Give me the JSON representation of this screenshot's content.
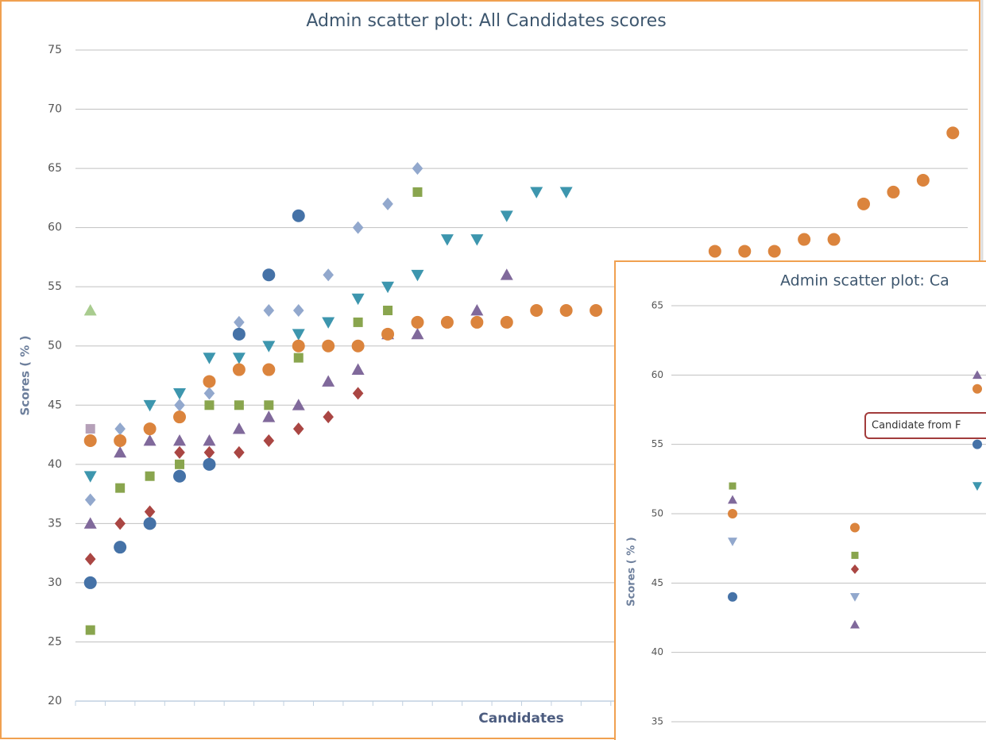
{
  "chart_data": [
    {
      "type": "scatter",
      "title": "Admin scatter plot: All Candidates scores",
      "x_label": "Candidates",
      "y_label": "Scores ( % )",
      "categories": [
        null,
        null,
        null,
        null,
        null,
        null,
        null,
        null,
        null,
        null,
        null,
        null,
        null,
        null,
        null,
        null,
        null,
        null,
        null,
        null,
        null,
        null,
        null,
        null,
        null,
        null,
        null,
        null,
        null,
        null
      ],
      "ylim": [
        20,
        75
      ],
      "yticks": [
        20,
        25,
        30,
        35,
        40,
        45,
        50,
        55,
        60,
        65,
        70,
        75
      ],
      "grid": true,
      "series": [
        {
          "color": "#b5a0b8",
          "marker": "square",
          "values": [
            43,
            null,
            null,
            null,
            null,
            null,
            null,
            null,
            null,
            null,
            null,
            null,
            null,
            null,
            null,
            null,
            null,
            null,
            null,
            null,
            null,
            null,
            null,
            null,
            null,
            null,
            null,
            null,
            null,
            null
          ]
        },
        {
          "color": "#a9cc8f",
          "marker": "triangle",
          "values": [
            53,
            null,
            null,
            null,
            null,
            null,
            null,
            null,
            null,
            null,
            null,
            null,
            null,
            null,
            null,
            null,
            null,
            null,
            null,
            null,
            null,
            null,
            null,
            null,
            null,
            null,
            null,
            null,
            null,
            null
          ]
        },
        {
          "color": "#92a8cd",
          "marker": "diamond",
          "values": [
            37,
            43,
            43,
            45,
            46,
            52,
            53,
            53,
            56,
            60,
            62,
            65,
            null,
            null,
            null,
            null,
            null,
            null,
            null,
            null,
            null,
            null,
            null,
            null,
            null,
            null,
            null,
            null,
            null,
            null
          ]
        },
        {
          "color": "#89a54e",
          "marker": "square",
          "values": [
            26,
            38,
            39,
            40,
            45,
            45,
            45,
            49,
            null,
            52,
            53,
            63,
            null,
            null,
            null,
            null,
            null,
            null,
            null,
            null,
            null,
            null,
            null,
            null,
            null,
            null,
            null,
            null,
            null,
            null
          ]
        },
        {
          "color": "#aa4643",
          "marker": "diamond",
          "values": [
            32,
            35,
            36,
            41,
            41,
            41,
            42,
            43,
            44,
            46,
            null,
            null,
            null,
            null,
            null,
            null,
            null,
            null,
            null,
            null,
            null,
            null,
            null,
            null,
            null,
            null,
            null,
            null,
            null,
            null
          ]
        },
        {
          "color": "#80699b",
          "marker": "triangle",
          "values": [
            35,
            41,
            42,
            42,
            42,
            43,
            44,
            45,
            47,
            48,
            51,
            51,
            null,
            53,
            56,
            null,
            null,
            null,
            null,
            null,
            null,
            null,
            null,
            null,
            null,
            null,
            null,
            null,
            null,
            null
          ]
        },
        {
          "color": "#3d96ae",
          "marker": "triangle-down",
          "values": [
            39,
            null,
            45,
            46,
            49,
            49,
            50,
            51,
            52,
            54,
            55,
            56,
            59,
            59,
            61,
            63,
            63,
            null,
            null,
            null,
            null,
            null,
            null,
            null,
            null,
            null,
            null,
            null,
            null,
            null
          ]
        },
        {
          "color": "#4572a7",
          "marker": "circle",
          "values": [
            30,
            33,
            35,
            39,
            40,
            51,
            56,
            61,
            null,
            null,
            null,
            null,
            null,
            null,
            null,
            null,
            null,
            null,
            null,
            null,
            null,
            null,
            null,
            null,
            null,
            null,
            null,
            null,
            null,
            null
          ]
        },
        {
          "color": "#db843d",
          "marker": "circle",
          "values": [
            42,
            42,
            43,
            44,
            47,
            48,
            48,
            50,
            50,
            50,
            51,
            52,
            52,
            52,
            52,
            53,
            53,
            53,
            null,
            null,
            null,
            58,
            58,
            58,
            59,
            59,
            62,
            63,
            64,
            68
          ]
        }
      ]
    },
    {
      "type": "scatter",
      "title": "Admin scatter plot: Ca",
      "y_label": "Scores ( % )",
      "tooltip": "Candidate from F",
      "categories": [
        null,
        null,
        null
      ],
      "ylim": [
        35,
        65
      ],
      "yticks": [
        35,
        40,
        45,
        50,
        55,
        60,
        65
      ],
      "grid": true,
      "series": [
        {
          "color": "#92a8cd",
          "marker": "triangle-down",
          "values": [
            48,
            44,
            null
          ]
        },
        {
          "color": "#89a54e",
          "marker": "square",
          "values": [
            52,
            47,
            null
          ]
        },
        {
          "color": "#aa4643",
          "marker": "diamond",
          "values": [
            null,
            46,
            null
          ]
        },
        {
          "color": "#80699b",
          "marker": "triangle",
          "values": [
            51,
            42,
            60
          ]
        },
        {
          "color": "#3d96ae",
          "marker": "triangle-down",
          "values": [
            null,
            null,
            52
          ]
        },
        {
          "color": "#4572a7",
          "marker": "circle",
          "values": [
            44,
            null,
            55
          ]
        },
        {
          "color": "#db843d",
          "marker": "circle",
          "values": [
            50,
            49,
            59
          ]
        }
      ]
    }
  ]
}
